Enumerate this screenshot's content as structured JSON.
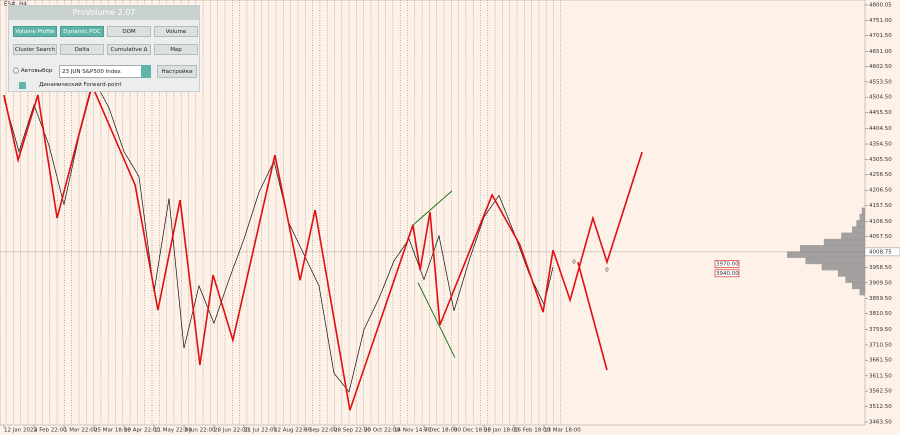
{
  "symbol": "ES#, H4",
  "panel": {
    "title": "ProVolume 2.07",
    "buttons": [
      {
        "label": "Volume Profile",
        "active": true
      },
      {
        "label": "Dynamic POC",
        "active": true
      },
      {
        "label": "DOM",
        "active": false
      },
      {
        "label": "Volume",
        "active": false
      },
      {
        "label": "Cluster Search",
        "active": false
      },
      {
        "label": "Delta",
        "active": false
      },
      {
        "label": "Cumulative Δ",
        "active": false
      },
      {
        "label": "Map",
        "active": false
      }
    ],
    "auto_select": "Автовыбор",
    "instrument": "23 JUN S&P500 Index",
    "settings": "Настройки",
    "forward_point": "Динамический Forward-point"
  },
  "chart_data": {
    "type": "line",
    "ylim": [
      3463.5,
      4800.05
    ],
    "yticks": [
      {
        "value": 4800.05,
        "label": "4800.05"
      },
      {
        "value": 4751,
        "label": "4751.00"
      },
      {
        "value": 4701.5,
        "label": "4701.50"
      },
      {
        "value": 4651,
        "label": "4651.00"
      },
      {
        "value": 4602.5,
        "label": "4602.50"
      },
      {
        "value": 4553.5,
        "label": "4553.50"
      },
      {
        "value": 4504.5,
        "label": "4504.50"
      },
      {
        "value": 4455.5,
        "label": "4455.50"
      },
      {
        "value": 4404.5,
        "label": "4404.50"
      },
      {
        "value": 4354.5,
        "label": "4354.50"
      },
      {
        "value": 4305.5,
        "label": "4305.50"
      },
      {
        "value": 4256.5,
        "label": "4256.50"
      },
      {
        "value": 4206.5,
        "label": "4206.50"
      },
      {
        "value": 4157.5,
        "label": "4157.50"
      },
      {
        "value": 4106.5,
        "label": "4106.50"
      },
      {
        "value": 4057.5,
        "label": "4057.50"
      },
      {
        "value": 3958.5,
        "label": "3958.50"
      },
      {
        "value": 3909.5,
        "label": "3909.50"
      },
      {
        "value": 3859.5,
        "label": "3859.50"
      },
      {
        "value": 3810.5,
        "label": "3810.50"
      },
      {
        "value": 3759.5,
        "label": "3759.50"
      },
      {
        "value": 3710.5,
        "label": "3710.50"
      },
      {
        "value": 3661.5,
        "label": "3661.50"
      },
      {
        "value": 3611.5,
        "label": "3611.50"
      },
      {
        "value": 3562.5,
        "label": "3562.50"
      },
      {
        "value": 3512.5,
        "label": "3512.50"
      },
      {
        "value": 3463.5,
        "label": "3463.50"
      }
    ],
    "categories": [
      "12 Jan 2022",
      "4 Feb 22:00",
      "1 Mar 22:00",
      "25 Mar 18:00",
      "19 Apr 22:00",
      "11 May 22:00",
      "3 Jun 22:00",
      "28 Jun 22:00",
      "21 Jul 22:00",
      "12 Aug 22:00",
      "6 Sep 22:00",
      "28 Sep 22:00",
      "20 Oct 22:00",
      "14 Nov 14:00",
      "7 Dec 18:00",
      "30 Dec 18:00",
      "25 Jan 18:00",
      "16 Feb 18:00",
      "13 Mar 18:00"
    ],
    "current_price": {
      "value": 4008.75,
      "label": "4008.75"
    },
    "price": {
      "name": "price",
      "color": "#111111",
      "x": [
        0,
        0.5,
        1,
        1.5,
        2,
        2.5,
        3,
        3.5,
        4,
        4.5,
        5,
        5.5,
        6,
        6.5,
        7,
        7.5,
        8,
        8.5,
        9,
        9.5,
        10,
        10.5,
        11,
        11.5,
        12,
        12.5,
        13,
        13.5,
        14,
        14.5,
        15,
        15.5,
        16,
        16.5,
        17,
        17.5,
        18,
        18.3
      ],
      "values": [
        4500,
        4330,
        4480,
        4350,
        4160,
        4380,
        4560,
        4470,
        4330,
        4250,
        3880,
        4180,
        3700,
        3900,
        3780,
        3920,
        4050,
        4200,
        4300,
        4100,
        4000,
        3900,
        3620,
        3560,
        3760,
        3860,
        3980,
        4050,
        3920,
        4060,
        3820,
        3980,
        4120,
        4190,
        4070,
        3940,
        3840,
        3960
      ]
    },
    "zigzag": {
      "name": "zigzag",
      "color": "#e01010",
      "x": [
        0,
        0.47,
        1.13,
        1.77,
        2.93,
        4.37,
        5.13,
        5.87,
        6.53,
        6.97,
        7.63,
        9.03,
        9.87,
        10.37,
        11.53,
        13.63,
        13.87,
        14.2,
        14.53,
        16.27,
        17.2,
        17.97,
        18.3,
        18.87,
        19.63,
        20.1,
        21.27
      ],
      "values": [
        4511.5,
        4303,
        4511.5,
        4117,
        4543.5,
        4223,
        3822,
        4175,
        3646,
        3934.5,
        3726,
        4319,
        3918,
        4143,
        3501.6,
        4094.7,
        3950.4,
        4136.4,
        3774,
        4191,
        4030.6,
        3815.8,
        4014.5,
        3854.2,
        4117,
        3976,
        4328.7
      ]
    },
    "forecast_down": {
      "color": "#e01010",
      "x": [
        19.13,
        20.1
      ],
      "values": [
        3976,
        3629.8
      ]
    },
    "channel": {
      "color": "#1a7a1a",
      "upper": {
        "x": [
          13.63,
          14.93
        ],
        "values": [
          4094.7,
          4203.7
        ]
      },
      "lower": {
        "x": [
          13.8,
          15.03
        ],
        "values": [
          3910,
          3670
        ]
      }
    },
    "forward_markers": [
      {
        "label": "0",
        "x": 19,
        "value": 3976
      },
      {
        "label": "0",
        "x": 20.1,
        "value": 3950
      }
    ],
    "levels": [
      {
        "value": 3970,
        "label": "3970.00"
      },
      {
        "value": 3940,
        "label": "3940.00"
      }
    ],
    "volume_profile": {
      "color": "#8c8c8c",
      "prices": [
        3880,
        3900,
        3920,
        3940,
        3960,
        3980,
        4000,
        4020,
        4040,
        4060,
        4080,
        4100,
        4120,
        4140
      ],
      "volumes": [
        5,
        12,
        18,
        25,
        40,
        55,
        72,
        60,
        38,
        22,
        12,
        8,
        5,
        3
      ]
    }
  }
}
